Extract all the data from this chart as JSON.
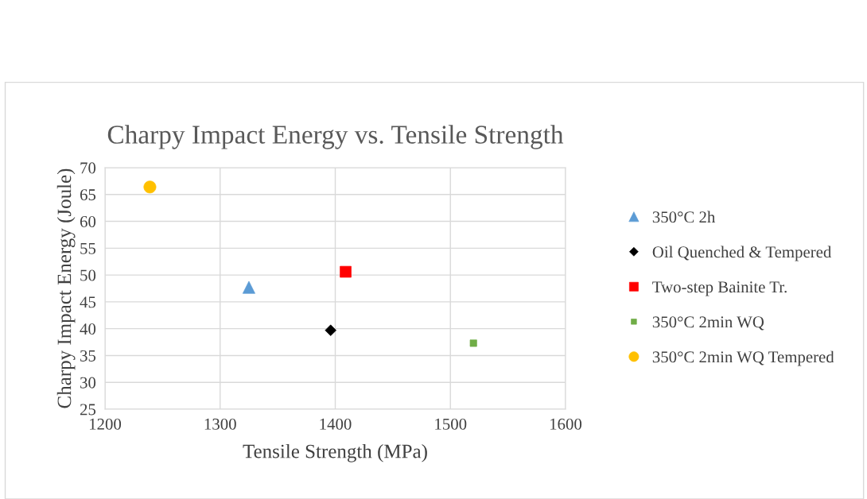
{
  "chart_data": {
    "type": "scatter",
    "title": "Charpy Impact Energy vs. Tensile Strength",
    "xlabel": "Tensile Strength (MPa)",
    "ylabel": "Charpy Impact Energy (Joule)",
    "xlim": [
      1200,
      1600
    ],
    "xticks": [
      1200,
      1300,
      1400,
      1500,
      1600
    ],
    "ylim": [
      25,
      70
    ],
    "yticks": [
      25,
      30,
      35,
      40,
      45,
      50,
      55,
      60,
      65,
      70
    ],
    "grid": true,
    "legend": "right",
    "series": [
      {
        "name": "350°C 2h",
        "color": "#5b9bd5",
        "marker": "triangle",
        "x": [
          1325
        ],
        "values": [
          47.7
        ]
      },
      {
        "name": "Oil Quenched & Tempered",
        "color": "#000000",
        "marker": "diamond",
        "x": [
          1396
        ],
        "values": [
          39.7
        ]
      },
      {
        "name": "Two-step Bainite Tr.",
        "color": "#ff0000",
        "marker": "square",
        "x": [
          1409
        ],
        "values": [
          50.6
        ]
      },
      {
        "name": "350°C 2min WQ",
        "color": "#70ad47",
        "marker": "square",
        "x": [
          1520
        ],
        "values": [
          37.3
        ]
      },
      {
        "name": "350°C 2min WQ Tempered",
        "color": "#ffc000",
        "marker": "circle",
        "x": [
          1239
        ],
        "values": [
          66.4
        ]
      }
    ]
  }
}
